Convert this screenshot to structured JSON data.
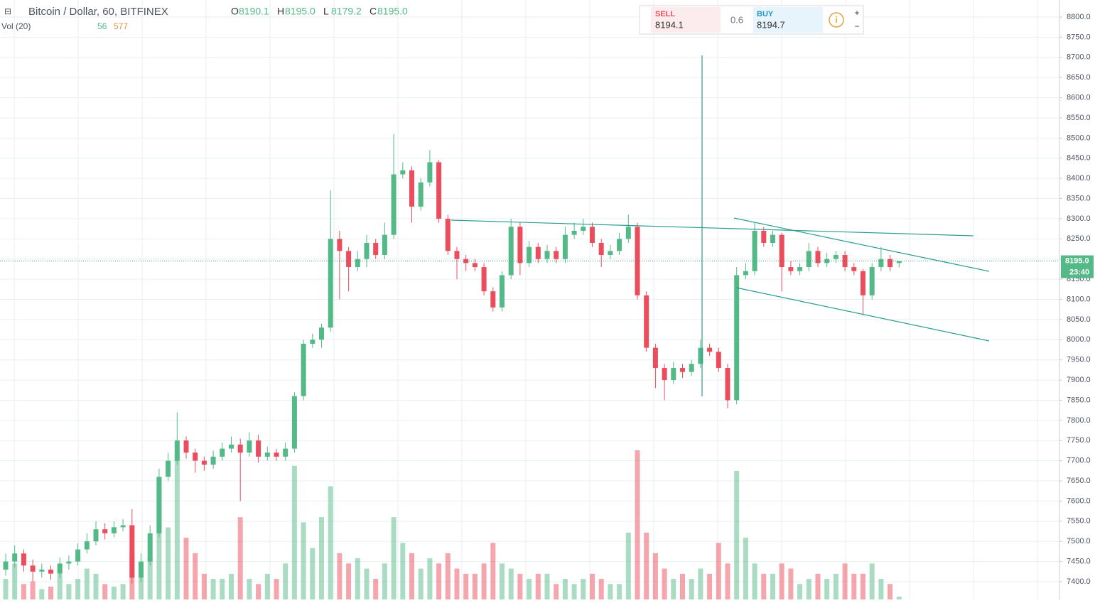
{
  "chart_data": {
    "type": "candlestick",
    "title": "Bitcoin / Dollar, 60, BITFINEX",
    "ohlc_header": [
      {
        "key": "O",
        "text": "8190.1"
      },
      {
        "key": "H",
        "text": "8195.0"
      },
      {
        "key": "L",
        "text": "8179.2"
      },
      {
        "key": "C",
        "text": "8195.0"
      }
    ],
    "volume_label": "Vol (20)",
    "volume_last": "56",
    "volume_ma": "577",
    "trade_panel": {
      "sell_label": "SELL",
      "sell_price": "8194.1",
      "spread": "0.6",
      "buy_label": "BUY",
      "buy_price": "8194.7"
    },
    "last_price_label": "8195.0",
    "countdown": "23:40",
    "up_color": "#53b987",
    "down_color": "#eb4d5c",
    "open": [
      7430,
      7450,
      7470,
      7440,
      7425,
      7430,
      7420,
      7445,
      7450,
      7480,
      7500,
      7530,
      7520,
      7535,
      7540,
      7410,
      7450,
      7520,
      7660,
      7700,
      7750,
      7720,
      7700,
      7690,
      7710,
      7730,
      7740,
      7720,
      7750,
      7710,
      7720,
      7710,
      7730,
      7860,
      7990,
      8000,
      8030,
      8250,
      8220,
      8180,
      8200,
      8240,
      8210,
      8260,
      8410,
      8420,
      8330,
      8390,
      8440,
      8300,
      8220,
      8200,
      8190,
      8180,
      8120,
      8080,
      8160,
      8280,
      8190,
      8230,
      8200,
      8220,
      8200,
      8260,
      8270,
      8280,
      8240,
      8210,
      8220,
      8250,
      8280,
      8110,
      7980,
      7930,
      7900,
      7930,
      7920,
      7940,
      7980,
      7970,
      7930,
      7850,
      8160,
      8170,
      8270,
      8240,
      8260,
      8180,
      8170,
      8180,
      8220,
      8190,
      8200,
      8210,
      8180,
      8170,
      8110,
      8180,
      8200,
      8190.1
    ],
    "high": [
      7470,
      7490,
      7480,
      7455,
      7445,
      7440,
      7460,
      7465,
      7495,
      7520,
      7550,
      7545,
      7550,
      7555,
      7580,
      7470,
      7540,
      7680,
      7720,
      7820,
      7760,
      7730,
      7710,
      7725,
      7745,
      7760,
      7755,
      7770,
      7765,
      7735,
      7730,
      7745,
      7870,
      8000,
      8015,
      8040,
      8370,
      8270,
      8230,
      8220,
      8260,
      8250,
      8290,
      8510,
      8440,
      8430,
      8400,
      8470,
      8445,
      8310,
      8230,
      8210,
      8200,
      8190,
      8130,
      8170,
      8300,
      8290,
      8245,
      8240,
      8235,
      8230,
      8280,
      8290,
      8300,
      8290,
      8250,
      8235,
      8265,
      8310,
      8290,
      8120,
      7990,
      7940,
      7945,
      7940,
      7950,
      8000,
      7990,
      7980,
      7940,
      8180,
      8190,
      8290,
      8280,
      8270,
      8265,
      8195,
      8190,
      8240,
      8230,
      8215,
      8220,
      8220,
      8190,
      8175,
      8190,
      8230,
      8210,
      8195
    ],
    "low": [
      7415,
      7435,
      7425,
      7400,
      7410,
      7405,
      7410,
      7430,
      7440,
      7470,
      7490,
      7505,
      7510,
      7525,
      7395,
      7400,
      7440,
      7510,
      7650,
      7690,
      7705,
      7670,
      7675,
      7680,
      7700,
      7720,
      7600,
      7710,
      7695,
      7700,
      7700,
      7700,
      7720,
      7850,
      7980,
      7980,
      8020,
      8100,
      8120,
      8170,
      8180,
      8200,
      8200,
      8250,
      8400,
      8290,
      8320,
      8380,
      8290,
      8210,
      8150,
      8170,
      8170,
      8110,
      8070,
      8070,
      8150,
      8160,
      8180,
      8190,
      8190,
      8190,
      8190,
      8250,
      8260,
      8230,
      8180,
      8200,
      8210,
      8240,
      8100,
      7970,
      7880,
      7850,
      7890,
      7905,
      7910,
      7930,
      7960,
      7920,
      7830,
      7840,
      8150,
      8160,
      8230,
      8230,
      8120,
      8160,
      8160,
      8170,
      8180,
      8180,
      8190,
      8170,
      8160,
      8060,
      8100,
      8170,
      8170,
      8179.2
    ],
    "close": [
      7450,
      7470,
      7440,
      7425,
      7430,
      7420,
      7445,
      7450,
      7480,
      7500,
      7530,
      7520,
      7535,
      7540,
      7410,
      7450,
      7520,
      7660,
      7700,
      7750,
      7720,
      7700,
      7690,
      7710,
      7730,
      7740,
      7720,
      7750,
      7710,
      7720,
      7710,
      7730,
      7860,
      7990,
      8000,
      8030,
      8250,
      8220,
      8180,
      8200,
      8240,
      8210,
      8260,
      8410,
      8420,
      8330,
      8390,
      8440,
      8300,
      8220,
      8200,
      8190,
      8180,
      8120,
      8080,
      8160,
      8280,
      8190,
      8230,
      8200,
      8220,
      8200,
      8260,
      8270,
      8280,
      8240,
      8210,
      8220,
      8250,
      8280,
      8110,
      7980,
      7930,
      7900,
      7930,
      7920,
      7940,
      7980,
      7970,
      7930,
      7850,
      8160,
      8170,
      8270,
      8240,
      8260,
      8180,
      8170,
      8180,
      8220,
      8190,
      8200,
      8210,
      8180,
      8170,
      8110,
      8180,
      8200,
      8180,
      8195
    ],
    "volume": [
      400,
      700,
      300,
      350,
      200,
      250,
      500,
      300,
      400,
      600,
      500,
      300,
      250,
      300,
      900,
      600,
      800,
      2200,
      1400,
      2800,
      1200,
      900,
      500,
      400,
      400,
      500,
      1600,
      400,
      300,
      500,
      400,
      700,
      2600,
      1500,
      1000,
      1600,
      2200,
      900,
      700,
      800,
      600,
      400,
      700,
      1600,
      1100,
      900,
      600,
      800,
      700,
      900,
      600,
      500,
      500,
      700,
      1100,
      700,
      600,
      500,
      400,
      500,
      500,
      300,
      400,
      300,
      400,
      500,
      400,
      300,
      300,
      1300,
      2900,
      1300,
      900,
      600,
      400,
      500,
      400,
      600,
      500,
      1100,
      700,
      2500,
      1200,
      700,
      500,
      500,
      700,
      600,
      300,
      400,
      500,
      400,
      500,
      700,
      500,
      500,
      700,
      400,
      300,
      56
    ],
    "ylim": [
      7400,
      8800
    ],
    "yticks": [
      {
        "value": 7400,
        "label": "7400.0"
      },
      {
        "value": 7450,
        "label": "7450.0"
      },
      {
        "value": 7500,
        "label": "7500.0"
      },
      {
        "value": 7550,
        "label": "7550.0"
      },
      {
        "value": 7600,
        "label": "7600.0"
      },
      {
        "value": 7650,
        "label": "7650.0"
      },
      {
        "value": 7700,
        "label": "7700.0"
      },
      {
        "value": 7750,
        "label": "7750.0"
      },
      {
        "value": 7800,
        "label": "7800.0"
      },
      {
        "value": 7850,
        "label": "7850.0"
      },
      {
        "value": 7900,
        "label": "7900.0"
      },
      {
        "value": 7950,
        "label": "7950.0"
      },
      {
        "value": 8000,
        "label": "8000.0"
      },
      {
        "value": 8050,
        "label": "8050.0"
      },
      {
        "value": 8100,
        "label": "8100.0"
      },
      {
        "value": 8150,
        "label": "8150.0"
      },
      {
        "value": 8200,
        "label": "8200.0"
      },
      {
        "value": 8250,
        "label": "8250.0"
      },
      {
        "value": 8300,
        "label": "8300.0"
      },
      {
        "value": 8350,
        "label": "8350.0"
      },
      {
        "value": 8400,
        "label": "8400.0"
      },
      {
        "value": 8450,
        "label": "8450.0"
      },
      {
        "value": 8500,
        "label": "8500.0"
      },
      {
        "value": 8550,
        "label": "8550.0"
      },
      {
        "value": 8600,
        "label": "8600.0"
      },
      {
        "value": 8650,
        "label": "8650.0"
      },
      {
        "value": 8700,
        "label": "8700.0"
      },
      {
        "value": 8750,
        "label": "8750.0"
      },
      {
        "value": 8800,
        "label": "8800.0"
      }
    ],
    "grid": true
  }
}
